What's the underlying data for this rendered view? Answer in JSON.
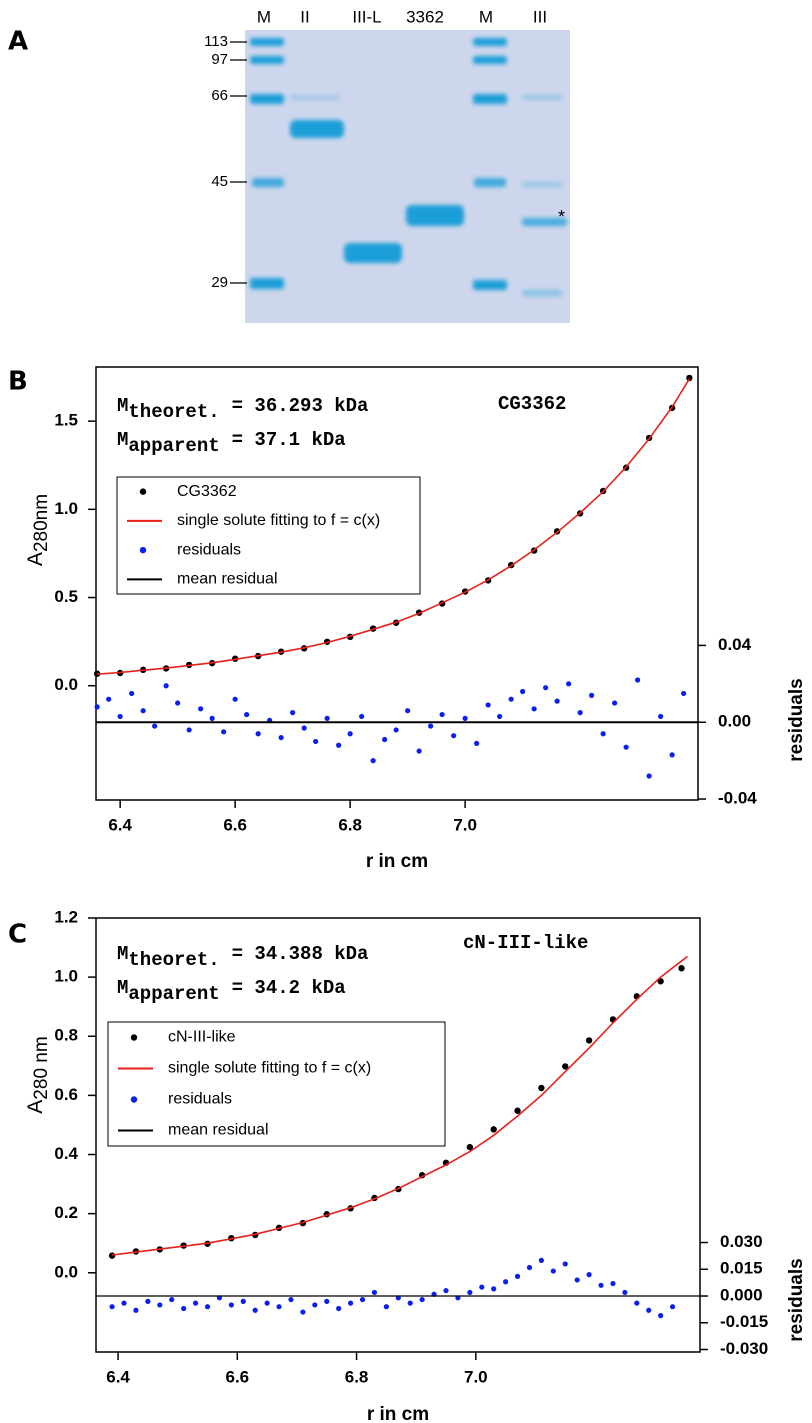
{
  "panel_labels": [
    "A",
    "B",
    "C"
  ],
  "gel": {
    "lanes": [
      "M",
      "II",
      "III-L",
      "3362",
      "M",
      "III"
    ],
    "markers": [
      113,
      97,
      66,
      45,
      29
    ],
    "asterisk": "*"
  },
  "chart_data": [
    {
      "type": "scatter",
      "annotations": [
        {
          "symbol": "M",
          "subscript": "theoret.",
          "text": "= 36.293 kDa"
        },
        {
          "symbol": "M",
          "subscript": "apparent",
          "text": "= 37.1 kDa"
        }
      ],
      "label": "CG3362",
      "ylabel": {
        "main": "A",
        "sub": "280nm"
      },
      "xlabel": "r in cm",
      "y2label": "residuals",
      "xlim": [
        6.358,
        7.405
      ],
      "xticks": [
        6.4,
        6.6,
        6.8,
        {
          "value": 7,
          "label": "7.0"
        }
      ],
      "ylim": [
        -0.648,
        1.807
      ],
      "yticks": [
        {
          "value": 0,
          "label": "0.0"
        },
        0.5,
        {
          "value": 1,
          "label": "1.0"
        },
        1.5
      ],
      "y2lim": [
        -0.0405,
        0.185
      ],
      "y2ticks": [
        {
          "value": -0.04,
          "label": "-0.04"
        },
        {
          "value": 0,
          "label": "0.00"
        },
        {
          "value": 0.04,
          "label": "0.04"
        }
      ],
      "series": [
        {
          "name": "CG3362",
          "kind": "scatter",
          "color": "#000000",
          "x": [
            6.36,
            6.4,
            6.44,
            6.48,
            6.52,
            6.56,
            6.6,
            6.64,
            6.68,
            6.72,
            6.76,
            6.8,
            6.84,
            6.88,
            6.92,
            6.96,
            7.0,
            7.04,
            7.08,
            7.12,
            7.16,
            7.2,
            7.24,
            7.28,
            7.32,
            7.36,
            7.39
          ],
          "values": [
            0.068,
            0.072,
            0.09,
            0.098,
            0.118,
            0.128,
            0.153,
            0.168,
            0.193,
            0.212,
            0.249,
            0.277,
            0.324,
            0.357,
            0.414,
            0.466,
            0.534,
            0.597,
            0.684,
            0.766,
            0.875,
            0.977,
            1.104,
            1.236,
            1.405,
            1.575,
            1.745
          ]
        },
        {
          "name": "single solute fitting to f = c(x)",
          "kind": "line",
          "color": "#e8201a",
          "x": [
            6.36,
            6.4,
            6.44,
            6.48,
            6.52,
            6.56,
            6.6,
            6.64,
            6.68,
            6.72,
            6.76,
            6.8,
            6.84,
            6.88,
            6.92,
            6.96,
            7.0,
            7.04,
            7.08,
            7.12,
            7.16,
            7.2,
            7.24,
            7.28,
            7.32,
            7.36,
            7.39
          ],
          "values": [
            0.065,
            0.075,
            0.088,
            0.1,
            0.115,
            0.13,
            0.15,
            0.17,
            0.19,
            0.215,
            0.245,
            0.28,
            0.32,
            0.36,
            0.41,
            0.47,
            0.53,
            0.6,
            0.68,
            0.77,
            0.87,
            0.98,
            1.1,
            1.24,
            1.4,
            1.58,
            1.74
          ]
        },
        {
          "name": "residuals",
          "kind": "scatter",
          "axis": "y2",
          "color": "#0a1ff0",
          "x": [
            6.36,
            6.38,
            6.4,
            6.42,
            6.44,
            6.46,
            6.48,
            6.5,
            6.52,
            6.54,
            6.56,
            6.58,
            6.6,
            6.62,
            6.64,
            6.66,
            6.68,
            6.7,
            6.72,
            6.74,
            6.76,
            6.78,
            6.8,
            6.82,
            6.84,
            6.86,
            6.88,
            6.9,
            6.92,
            6.94,
            6.96,
            6.98,
            7.0,
            7.02,
            7.04,
            7.06,
            7.08,
            7.1,
            7.12,
            7.14,
            7.16,
            7.18,
            7.2,
            7.22,
            7.24,
            7.26,
            7.28,
            7.3,
            7.32,
            7.34,
            7.36,
            7.38
          ],
          "values": [
            0.008,
            0.012,
            0.003,
            0.015,
            0.006,
            -0.002,
            0.019,
            0.01,
            -0.004,
            0.007,
            0.002,
            -0.005,
            0.012,
            0.004,
            -0.006,
            0.001,
            -0.008,
            0.005,
            -0.003,
            -0.01,
            0.002,
            -0.012,
            -0.006,
            0.003,
            -0.02,
            -0.009,
            -0.004,
            0.006,
            -0.015,
            -0.002,
            0.004,
            -0.007,
            0.002,
            -0.011,
            0.009,
            0.003,
            0.012,
            0.016,
            0.007,
            0.018,
            0.011,
            0.02,
            0.005,
            0.014,
            -0.006,
            0.01,
            -0.013,
            0.022,
            -0.028,
            0.003,
            -0.017,
            0.015
          ]
        },
        {
          "name": "mean residual",
          "kind": "line",
          "axis": "y2",
          "color": "#000000",
          "x": [
            6.358,
            7.405
          ],
          "values": [
            0,
            0
          ]
        }
      ]
    },
    {
      "type": "scatter",
      "annotations": [
        {
          "symbol": "M",
          "subscript": "theoret.",
          "text": "= 34.388 kDa"
        },
        {
          "symbol": "M",
          "subscript": "apparent",
          "text": "= 34.2 kDa"
        }
      ],
      "label": "cN-III-like",
      "ylabel": {
        "main": "A",
        "sub": "280 nm"
      },
      "xlabel": "r in cm",
      "y2label": "residuals",
      "xlim": [
        6.363,
        7.376
      ],
      "xticks": [
        6.4,
        6.6,
        6.8,
        {
          "value": 7,
          "label": "7.0"
        }
      ],
      "ylim": [
        -0.268,
        1.2
      ],
      "yticks": [
        {
          "value": 0,
          "label": "0.0"
        },
        0.2,
        0.4,
        0.6,
        0.8,
        {
          "value": 1,
          "label": "1.0"
        },
        1.2
      ],
      "y2lim": [
        -0.0314,
        0.212
      ],
      "y2ticks": [
        {
          "value": -0.03,
          "label": "-0.030"
        },
        {
          "value": -0.015,
          "label": "-0.015"
        },
        {
          "value": 0,
          "label": "0.000"
        },
        {
          "value": 0.015,
          "label": "0.015"
        },
        {
          "value": 0.03,
          "label": "0.030"
        }
      ],
      "series": [
        {
          "name": "cN-III-like",
          "kind": "scatter",
          "color": "#000000",
          "x": [
            6.39,
            6.43,
            6.47,
            6.51,
            6.55,
            6.59,
            6.63,
            6.67,
            6.71,
            6.75,
            6.79,
            6.83,
            6.87,
            6.91,
            6.95,
            6.99,
            7.03,
            7.07,
            7.11,
            7.15,
            7.19,
            7.23,
            7.27,
            7.31,
            7.345
          ],
          "values": [
            0.058,
            0.072,
            0.079,
            0.092,
            0.098,
            0.117,
            0.128,
            0.152,
            0.168,
            0.198,
            0.218,
            0.253,
            0.283,
            0.33,
            0.372,
            0.425,
            0.485,
            0.548,
            0.625,
            0.698,
            0.786,
            0.857,
            0.935,
            0.986,
            1.03
          ]
        },
        {
          "name": "single solute fitting to f = c(x)",
          "kind": "line",
          "color": "#e8201a",
          "x": [
            6.39,
            6.43,
            6.47,
            6.51,
            6.55,
            6.59,
            6.63,
            6.67,
            6.71,
            6.75,
            6.79,
            6.83,
            6.87,
            6.91,
            6.95,
            6.99,
            7.03,
            7.07,
            7.11,
            7.15,
            7.19,
            7.23,
            7.27,
            7.31,
            7.355
          ],
          "values": [
            0.06,
            0.07,
            0.08,
            0.09,
            0.1,
            0.115,
            0.13,
            0.15,
            0.17,
            0.195,
            0.22,
            0.25,
            0.285,
            0.325,
            0.365,
            0.41,
            0.465,
            0.53,
            0.6,
            0.68,
            0.76,
            0.845,
            0.925,
            1.0,
            1.07
          ]
        },
        {
          "name": "residuals",
          "kind": "scatter",
          "axis": "y2",
          "color": "#0a1ff0",
          "x": [
            6.39,
            6.41,
            6.43,
            6.45,
            6.47,
            6.49,
            6.51,
            6.53,
            6.55,
            6.57,
            6.59,
            6.61,
            6.63,
            6.65,
            6.67,
            6.69,
            6.71,
            6.73,
            6.75,
            6.77,
            6.79,
            6.81,
            6.83,
            6.85,
            6.87,
            6.89,
            6.91,
            6.93,
            6.95,
            6.97,
            6.99,
            7.01,
            7.03,
            7.05,
            7.07,
            7.09,
            7.11,
            7.13,
            7.15,
            7.17,
            7.19,
            7.21,
            7.23,
            7.25,
            7.27,
            7.29,
            7.31,
            7.33
          ],
          "values": [
            -0.006,
            -0.004,
            -0.008,
            -0.003,
            -0.005,
            -0.002,
            -0.007,
            -0.004,
            -0.006,
            -0.001,
            -0.005,
            -0.003,
            -0.008,
            -0.004,
            -0.006,
            -0.002,
            -0.009,
            -0.005,
            -0.003,
            -0.007,
            -0.004,
            -0.002,
            0.002,
            -0.006,
            -0.001,
            -0.004,
            -0.002,
            0.001,
            0.003,
            -0.001,
            0.002,
            0.005,
            0.004,
            0.008,
            0.011,
            0.016,
            0.02,
            0.014,
            0.018,
            0.009,
            0.012,
            0.006,
            0.007,
            0.002,
            -0.004,
            -0.008,
            -0.011,
            -0.006
          ]
        },
        {
          "name": "mean residual",
          "kind": "line",
          "axis": "y2",
          "color": "#000000",
          "x": [
            6.363,
            7.376
          ],
          "values": [
            0,
            0
          ]
        }
      ]
    }
  ]
}
